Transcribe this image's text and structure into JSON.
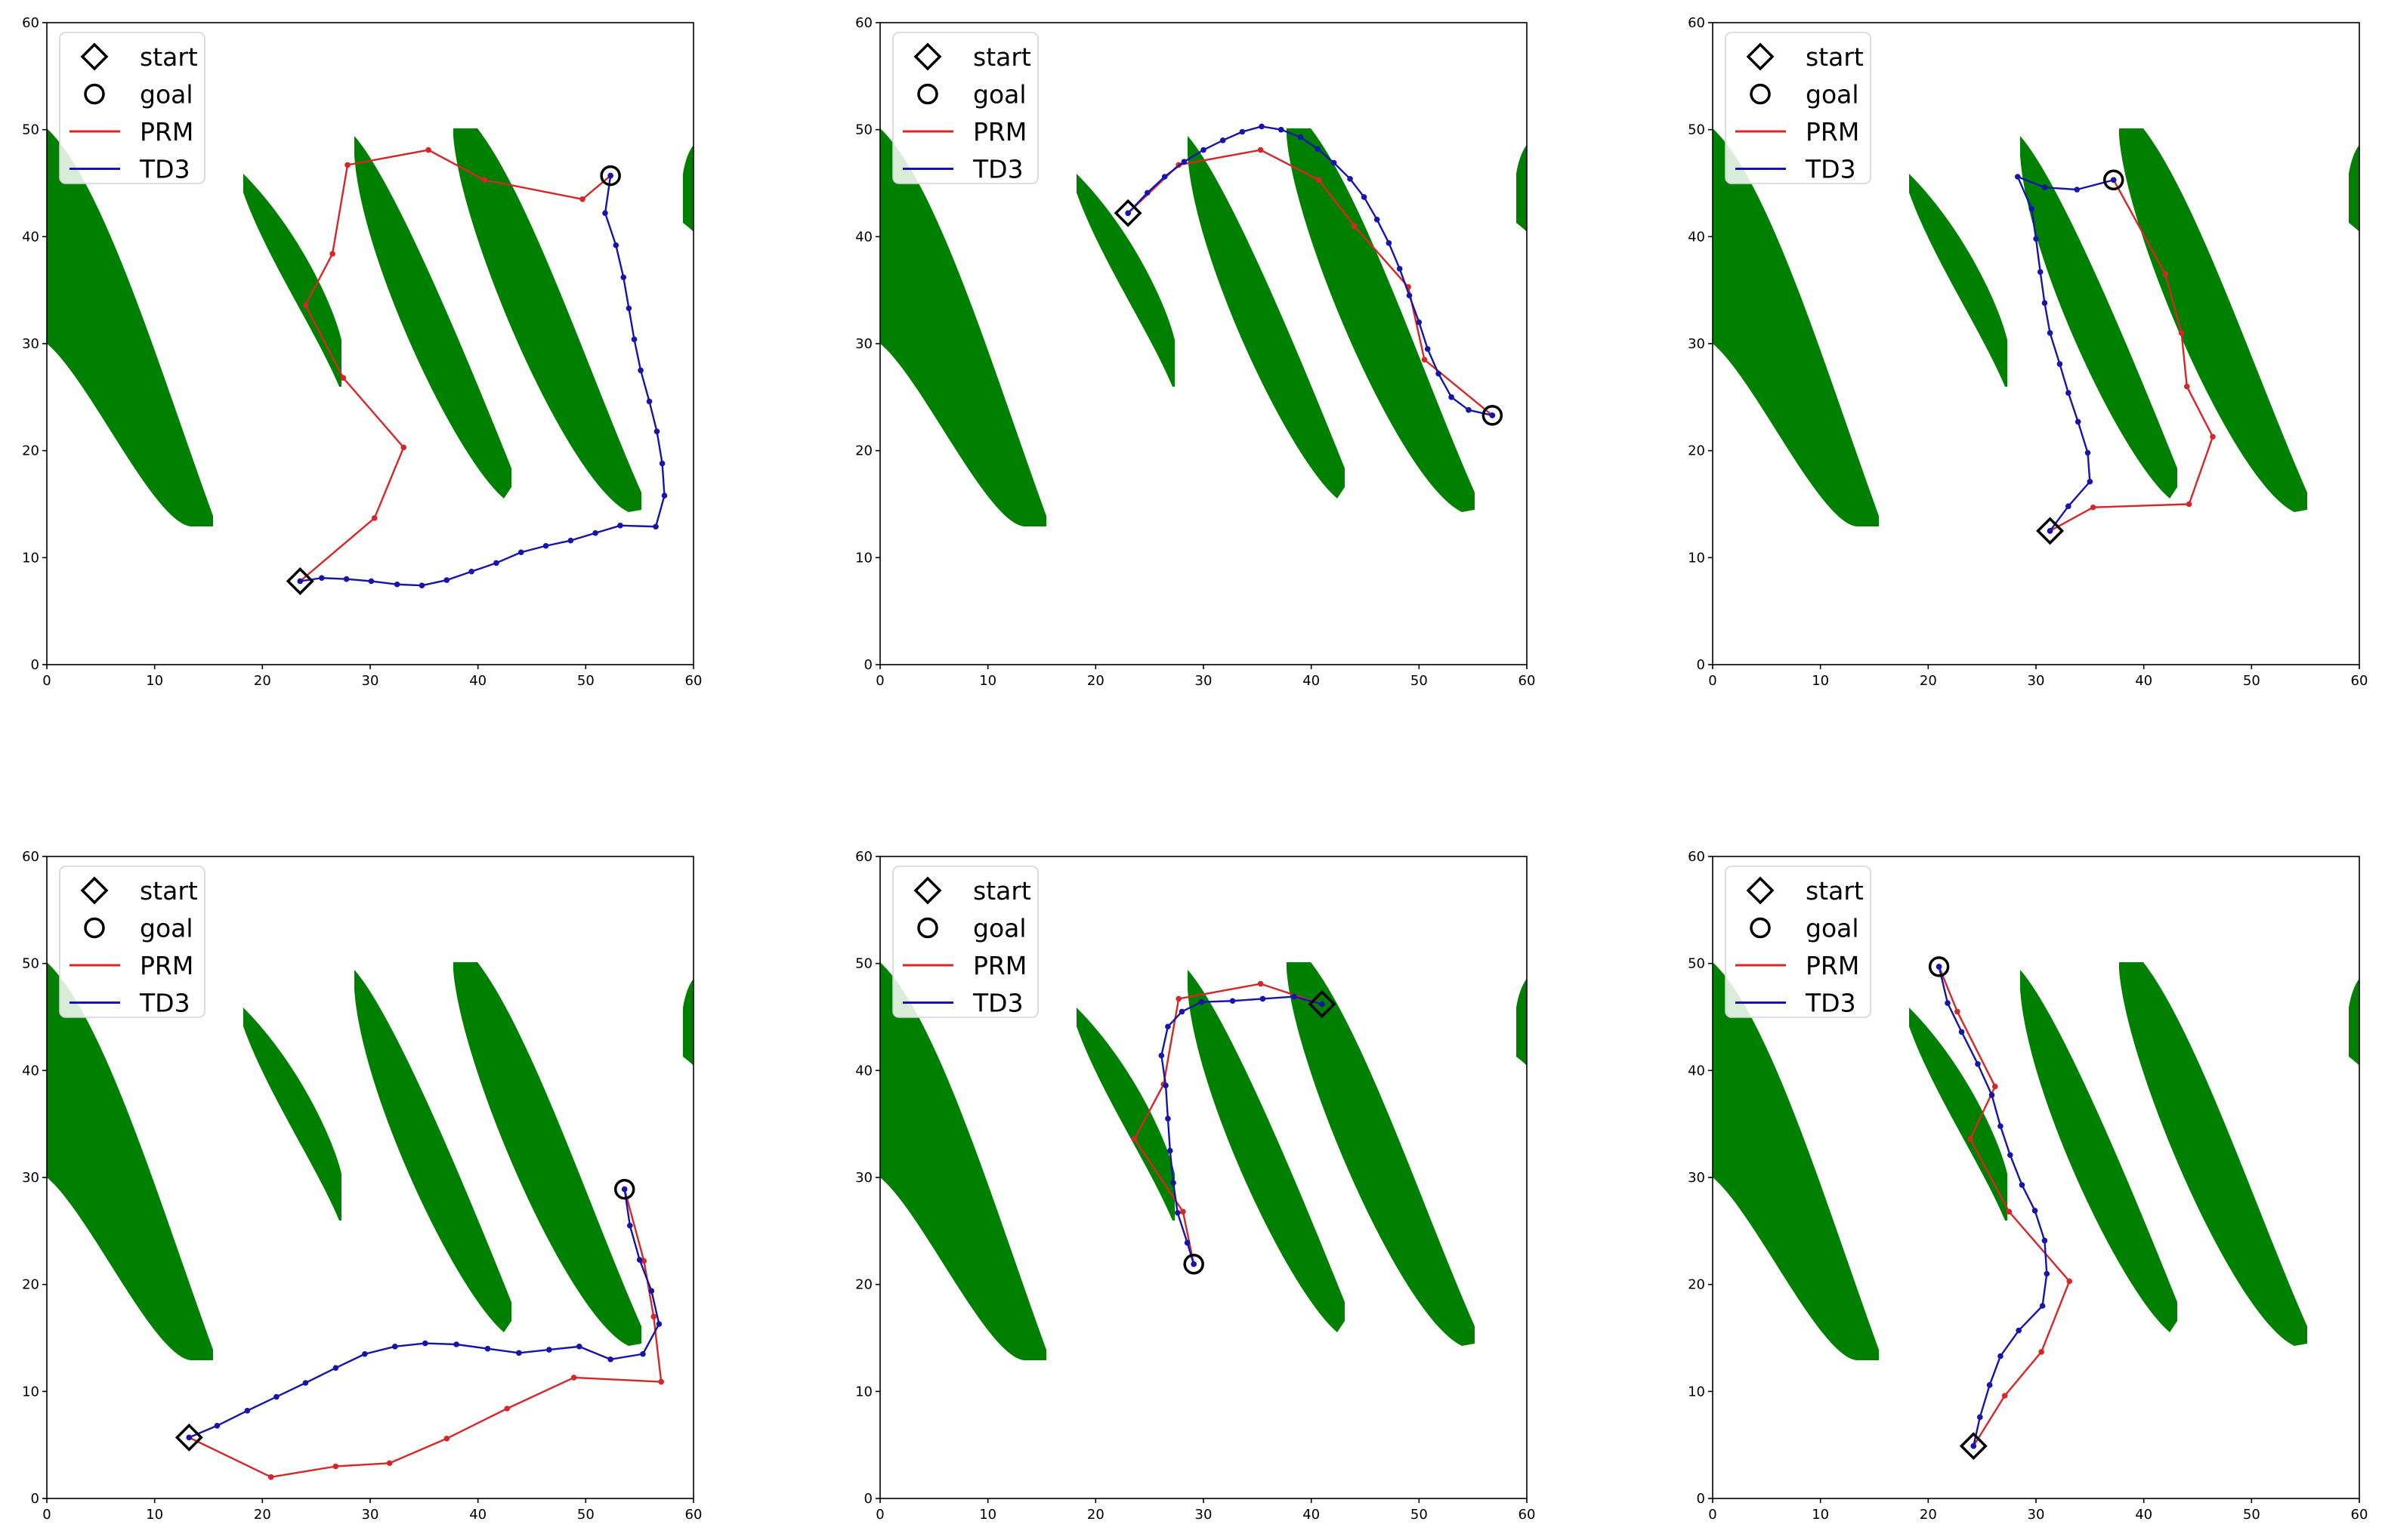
{
  "chart_data": [
    {
      "type": "line",
      "xlim": [
        0,
        60
      ],
      "ylim": [
        0,
        60
      ],
      "xticks": [
        "0",
        "10",
        "20",
        "30",
        "40",
        "50",
        "60"
      ],
      "yticks": [
        "0",
        "10",
        "20",
        "30",
        "40",
        "50",
        "60"
      ],
      "legend": [
        {
          "label": "start",
          "marker": "diamond"
        },
        {
          "label": "goal",
          "marker": "circle"
        },
        {
          "label": "PRM",
          "color": "#d62728"
        },
        {
          "label": "TD3",
          "color": "#1515aa"
        }
      ],
      "start": [
        23.5,
        7.8
      ],
      "goal": [
        52.3,
        45.7
      ],
      "series": [
        {
          "name": "PRM",
          "color": "#d62728",
          "points": [
            [
              23.5,
              7.8
            ],
            [
              30.4,
              13.7
            ],
            [
              33.1,
              20.3
            ],
            [
              27.5,
              26.8
            ],
            [
              24,
              33.6
            ],
            [
              26.5,
              38.4
            ],
            [
              27.9,
              46.7
            ],
            [
              35.4,
              48.1
            ],
            [
              40.6,
              45.3
            ],
            [
              49.7,
              43.5
            ],
            [
              52.3,
              45.7
            ]
          ]
        },
        {
          "name": "TD3",
          "color": "#1515aa",
          "points": [
            [
              23.5,
              7.8
            ],
            [
              25.5,
              8.1
            ],
            [
              27.8,
              8.0
            ],
            [
              30.1,
              7.8
            ],
            [
              32.5,
              7.5
            ],
            [
              34.8,
              7.4
            ],
            [
              37.1,
              7.9
            ],
            [
              39.4,
              8.7
            ],
            [
              41.7,
              9.5
            ],
            [
              44.0,
              10.5
            ],
            [
              46.3,
              11.1
            ],
            [
              48.6,
              11.6
            ],
            [
              50.9,
              12.3
            ],
            [
              53.2,
              13.0
            ],
            [
              56.5,
              12.9
            ],
            [
              57.3,
              15.8
            ],
            [
              57.1,
              18.8
            ],
            [
              56.6,
              21.8
            ],
            [
              55.9,
              24.6
            ],
            [
              55.1,
              27.5
            ],
            [
              54.5,
              30.4
            ],
            [
              54.0,
              33.3
            ],
            [
              53.5,
              36.2
            ],
            [
              52.8,
              39.2
            ],
            [
              51.8,
              42.2
            ],
            [
              52.3,
              45.7
            ]
          ]
        }
      ]
    },
    {
      "type": "line",
      "xlim": [
        0,
        60
      ],
      "ylim": [
        0,
        60
      ],
      "xticks": [
        "0",
        "10",
        "20",
        "30",
        "40",
        "50",
        "60"
      ],
      "yticks": [
        "0",
        "10",
        "20",
        "30",
        "40",
        "50",
        "60"
      ],
      "legend": [
        {
          "label": "start",
          "marker": "diamond"
        },
        {
          "label": "goal",
          "marker": "circle"
        },
        {
          "label": "PRM",
          "color": "#d62728"
        },
        {
          "label": "TD3",
          "color": "#1515aa"
        }
      ],
      "start": [
        23.0,
        42.2
      ],
      "goal": [
        56.8,
        23.3
      ],
      "series": [
        {
          "name": "PRM",
          "color": "#d62728",
          "points": [
            [
              23.0,
              42.2
            ],
            [
              27.7,
              46.7
            ],
            [
              35.3,
              48.1
            ],
            [
              40.7,
              45.3
            ],
            [
              44.0,
              41.0
            ],
            [
              49.0,
              35.3
            ],
            [
              50.5,
              28.5
            ],
            [
              56.8,
              23.3
            ]
          ]
        },
        {
          "name": "TD3",
          "color": "#1515aa",
          "points": [
            [
              23.0,
              42.2
            ],
            [
              24.8,
              44.1
            ],
            [
              26.4,
              45.6
            ],
            [
              28.2,
              47.0
            ],
            [
              30.0,
              48.1
            ],
            [
              31.8,
              49.0
            ],
            [
              33.6,
              49.8
            ],
            [
              35.4,
              50.3
            ],
            [
              37.2,
              50.0
            ],
            [
              39.0,
              49.3
            ],
            [
              40.6,
              48.2
            ],
            [
              42.1,
              46.9
            ],
            [
              43.6,
              45.4
            ],
            [
              44.9,
              43.7
            ],
            [
              46.1,
              41.6
            ],
            [
              47.2,
              39.4
            ],
            [
              48.2,
              37.0
            ],
            [
              49.1,
              34.5
            ],
            [
              50.0,
              32.0
            ],
            [
              50.8,
              29.5
            ],
            [
              51.8,
              27.2
            ],
            [
              53.0,
              25.0
            ],
            [
              54.6,
              23.8
            ],
            [
              56.8,
              23.3
            ]
          ]
        }
      ]
    },
    {
      "type": "line",
      "xlim": [
        0,
        60
      ],
      "ylim": [
        0,
        60
      ],
      "xticks": [
        "0",
        "10",
        "20",
        "30",
        "40",
        "50",
        "60"
      ],
      "yticks": [
        "0",
        "10",
        "20",
        "30",
        "40",
        "50",
        "60"
      ],
      "legend": [
        {
          "label": "start",
          "marker": "diamond"
        },
        {
          "label": "goal",
          "marker": "circle"
        },
        {
          "label": "PRM",
          "color": "#d62728"
        },
        {
          "label": "TD3",
          "color": "#1515aa"
        }
      ],
      "start": [
        31.3,
        12.5
      ],
      "goal": [
        37.2,
        45.3
      ],
      "series": [
        {
          "name": "PRM",
          "color": "#d62728",
          "points": [
            [
              31.3,
              12.5
            ],
            [
              35.3,
              14.7
            ],
            [
              44.2,
              15.0
            ],
            [
              46.4,
              21.3
            ],
            [
              44.0,
              26.0
            ],
            [
              43.5,
              31.0
            ],
            [
              42.0,
              36.5
            ],
            [
              37.2,
              45.3
            ]
          ]
        },
        {
          "name": "TD3",
          "color": "#1515aa",
          "points": [
            [
              31.3,
              12.5
            ],
            [
              33.0,
              14.8
            ],
            [
              35.0,
              17.1
            ],
            [
              34.8,
              19.8
            ],
            [
              33.9,
              22.7
            ],
            [
              33.0,
              25.4
            ],
            [
              32.2,
              28.1
            ],
            [
              31.3,
              31.0
            ],
            [
              30.8,
              33.8
            ],
            [
              30.4,
              36.7
            ],
            [
              30.0,
              39.8
            ],
            [
              29.6,
              42.6
            ],
            [
              28.3,
              45.6
            ],
            [
              30.8,
              44.6
            ],
            [
              33.8,
              44.4
            ],
            [
              37.2,
              45.3
            ]
          ]
        }
      ]
    },
    {
      "type": "line",
      "xlim": [
        0,
        60
      ],
      "ylim": [
        0,
        60
      ],
      "xticks": [
        "0",
        "10",
        "20",
        "30",
        "40",
        "50",
        "60"
      ],
      "yticks": [
        "0",
        "10",
        "20",
        "30",
        "40",
        "50",
        "60"
      ],
      "legend": [
        {
          "label": "start",
          "marker": "diamond"
        },
        {
          "label": "goal",
          "marker": "circle"
        },
        {
          "label": "PRM",
          "color": "#d62728"
        },
        {
          "label": "TD3",
          "color": "#1515aa"
        }
      ],
      "start": [
        13.2,
        5.7
      ],
      "goal": [
        53.6,
        28.9
      ],
      "series": [
        {
          "name": "PRM",
          "color": "#d62728",
          "points": [
            [
              13.2,
              5.7
            ],
            [
              20.8,
              2.0
            ],
            [
              26.8,
              3.0
            ],
            [
              31.8,
              3.3
            ],
            [
              37.1,
              5.6
            ],
            [
              42.7,
              8.4
            ],
            [
              48.9,
              11.3
            ],
            [
              57.0,
              10.9
            ],
            [
              56.3,
              17.0
            ],
            [
              55.4,
              22.2
            ],
            [
              53.6,
              28.9
            ]
          ]
        },
        {
          "name": "TD3",
          "color": "#1515aa",
          "points": [
            [
              13.2,
              5.7
            ],
            [
              15.8,
              6.8
            ],
            [
              18.6,
              8.2
            ],
            [
              21.3,
              9.5
            ],
            [
              24.0,
              10.8
            ],
            [
              26.8,
              12.2
            ],
            [
              29.5,
              13.5
            ],
            [
              32.3,
              14.2
            ],
            [
              35.1,
              14.5
            ],
            [
              38.0,
              14.4
            ],
            [
              40.9,
              14.0
            ],
            [
              43.8,
              13.6
            ],
            [
              46.6,
              13.9
            ],
            [
              49.4,
              14.2
            ],
            [
              52.3,
              13.0
            ],
            [
              55.3,
              13.5
            ],
            [
              56.8,
              16.3
            ],
            [
              56.1,
              19.4
            ],
            [
              55.0,
              22.3
            ],
            [
              54.1,
              25.5
            ],
            [
              53.6,
              28.9
            ]
          ]
        }
      ]
    },
    {
      "type": "line",
      "xlim": [
        0,
        60
      ],
      "ylim": [
        0,
        60
      ],
      "xticks": [
        "0",
        "10",
        "20",
        "30",
        "40",
        "50",
        "60"
      ],
      "yticks": [
        "0",
        "10",
        "20",
        "30",
        "40",
        "50",
        "60"
      ],
      "legend": [
        {
          "label": "start",
          "marker": "diamond"
        },
        {
          "label": "goal",
          "marker": "circle"
        },
        {
          "label": "PRM",
          "color": "#d62728"
        },
        {
          "label": "TD3",
          "color": "#1515aa"
        }
      ],
      "start": [
        41.0,
        46.2
      ],
      "goal": [
        29.1,
        21.9
      ],
      "series": [
        {
          "name": "PRM",
          "color": "#d62728",
          "points": [
            [
              41.0,
              46.2
            ],
            [
              35.3,
              48.1
            ],
            [
              27.7,
              46.7
            ],
            [
              26.3,
              38.7
            ],
            [
              23.6,
              33.6
            ],
            [
              28.1,
              26.8
            ],
            [
              29.1,
              21.9
            ]
          ]
        },
        {
          "name": "TD3",
          "color": "#1515aa",
          "points": [
            [
              41.0,
              46.2
            ],
            [
              38.4,
              46.9
            ],
            [
              35.5,
              46.7
            ],
            [
              32.7,
              46.5
            ],
            [
              29.8,
              46.4
            ],
            [
              28.0,
              45.5
            ],
            [
              26.7,
              44.1
            ],
            [
              26.1,
              41.4
            ],
            [
              26.5,
              38.6
            ],
            [
              26.7,
              35.5
            ],
            [
              26.9,
              32.5
            ],
            [
              27.2,
              29.5
            ],
            [
              27.6,
              26.7
            ],
            [
              28.5,
              23.9
            ],
            [
              29.1,
              21.9
            ]
          ]
        }
      ]
    },
    {
      "type": "line",
      "xlim": [
        0,
        60
      ],
      "ylim": [
        0,
        60
      ],
      "xticks": [
        "0",
        "10",
        "20",
        "30",
        "40",
        "50",
        "60"
      ],
      "yticks": [
        "0",
        "10",
        "20",
        "30",
        "40",
        "50",
        "60"
      ],
      "legend": [
        {
          "label": "start",
          "marker": "diamond"
        },
        {
          "label": "goal",
          "marker": "circle"
        },
        {
          "label": "PRM",
          "color": "#d62728"
        },
        {
          "label": "TD3",
          "color": "#1515aa"
        }
      ],
      "start": [
        24.2,
        4.9
      ],
      "goal": [
        21.0,
        49.7
      ],
      "series": [
        {
          "name": "PRM",
          "color": "#d62728",
          "points": [
            [
              24.2,
              4.9
            ],
            [
              27.1,
              9.6
            ],
            [
              30.5,
              13.7
            ],
            [
              33.1,
              20.3
            ],
            [
              27.5,
              26.8
            ],
            [
              23.9,
              33.6
            ],
            [
              26.2,
              38.5
            ],
            [
              22.7,
              45.5
            ],
            [
              21.0,
              49.7
            ]
          ]
        },
        {
          "name": "TD3",
          "color": "#1515aa",
          "points": [
            [
              24.2,
              4.9
            ],
            [
              24.8,
              7.6
            ],
            [
              25.7,
              10.6
            ],
            [
              26.7,
              13.3
            ],
            [
              28.4,
              15.7
            ],
            [
              30.6,
              18.0
            ],
            [
              31.0,
              21.0
            ],
            [
              30.8,
              24.1
            ],
            [
              29.9,
              26.9
            ],
            [
              28.7,
              29.3
            ],
            [
              27.6,
              32.1
            ],
            [
              26.7,
              34.8
            ],
            [
              25.9,
              37.7
            ],
            [
              24.6,
              40.6
            ],
            [
              23.1,
              43.6
            ],
            [
              21.8,
              46.3
            ],
            [
              21.0,
              49.7
            ]
          ]
        }
      ]
    }
  ],
  "obstacle_color": "#008000"
}
